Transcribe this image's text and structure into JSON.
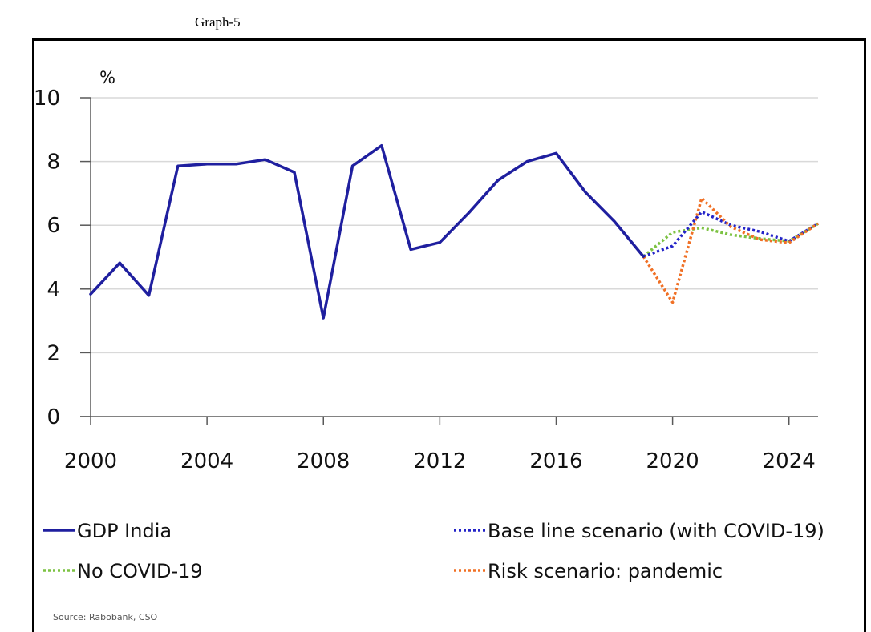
{
  "caption": "Graph-5",
  "source": "Source: Rabobank, CSO",
  "chart_data": {
    "type": "line",
    "title": "",
    "xlabel": "",
    "ylabel": "%",
    "xlim": [
      2000,
      2025
    ],
    "ylim": [
      0,
      10
    ],
    "xticks": [
      "2000",
      "2004",
      "2008",
      "2012",
      "2016",
      "2020",
      "2024"
    ],
    "yticks": [
      "0",
      "2",
      "4",
      "6",
      "8",
      "10"
    ],
    "grid": "horizontal",
    "legend_position": "bottom",
    "series": [
      {
        "name": "GDP India",
        "style": "solid",
        "color": "#1f1f9f",
        "x": [
          2000,
          2001,
          2002,
          2003,
          2004,
          2005,
          2006,
          2007,
          2008,
          2009,
          2010,
          2011,
          2012,
          2013,
          2014,
          2015,
          2016,
          2017,
          2018,
          2019
        ],
        "y": [
          3.84,
          4.82,
          3.8,
          7.86,
          7.92,
          7.92,
          8.06,
          7.66,
          3.09,
          7.86,
          8.5,
          5.24,
          5.46,
          6.39,
          7.41,
          8.0,
          8.26,
          7.04,
          6.12,
          5.02
        ]
      },
      {
        "name": "Base line scenario (with COVID-19)",
        "style": "dotted",
        "color": "#2424c8",
        "x": [
          2019,
          2020,
          2021,
          2022,
          2023,
          2024,
          2025
        ],
        "y": [
          5.02,
          5.35,
          6.42,
          6.0,
          5.8,
          5.5,
          6.05
        ]
      },
      {
        "name": "No COVID-19",
        "style": "dotted",
        "color": "#7cc242",
        "x": [
          2019,
          2020,
          2021,
          2022,
          2023,
          2024,
          2025
        ],
        "y": [
          5.02,
          5.78,
          5.92,
          5.7,
          5.58,
          5.5,
          6.05
        ]
      },
      {
        "name": "Risk scenario: pandemic",
        "style": "dotted",
        "color": "#f07025",
        "x": [
          2019,
          2020,
          2021,
          2022,
          2023,
          2024,
          2025
        ],
        "y": [
          5.02,
          3.58,
          6.85,
          5.95,
          5.55,
          5.45,
          6.05
        ]
      }
    ]
  }
}
